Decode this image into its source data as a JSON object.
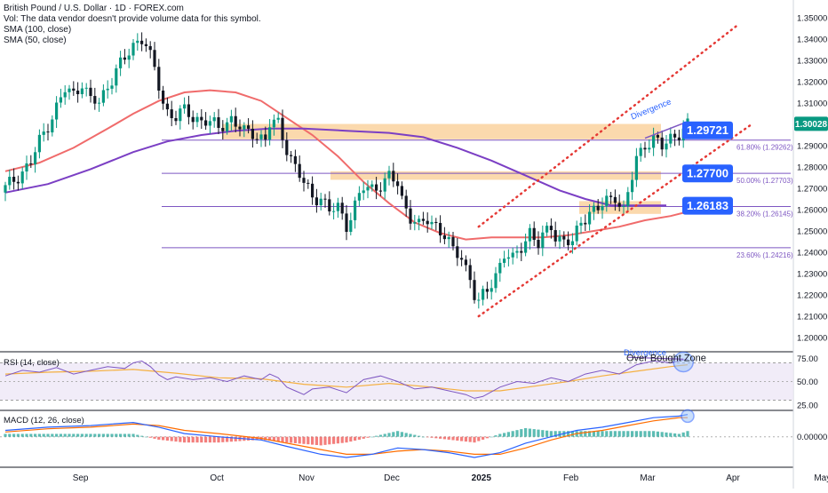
{
  "legend": {
    "title": "British Pound / U.S. Dollar · 1D · FOREX.com",
    "vol_note": "Vol: The data vendor doesn't provide volume data for this symbol.",
    "sma100": "SMA (100, close)",
    "sma50": "SMA (50, close)"
  },
  "rsi_label": "RSI (14, close)",
  "macd_label": "MACD (12, 26, close)",
  "colors": {
    "up": "#089981",
    "down": "#131722",
    "sma50": "#f06b6b",
    "sma100": "#7b3fc4",
    "fib": "#7e57c2",
    "zone": "#f9c98a",
    "badge": "#2962ff",
    "trend": "#e53935",
    "rsi": "#7e57c2",
    "rsi_ma": "#f5b041",
    "macd": "#2962ff",
    "signal": "#ff6d00",
    "hist_up": "#26a69a",
    "hist_down": "#ef5350"
  },
  "chart_data": {
    "type": "candlestick",
    "symbol": "British Pound / U.S. Dollar",
    "timeframe": "1D",
    "y_axis": {
      "range": [
        1.195,
        1.355
      ],
      "ticks": [
        "1.35000",
        "1.34000",
        "1.33000",
        "1.32000",
        "1.31000",
        "1.30000",
        "1.29000",
        "1.28000",
        "1.27000",
        "1.26000",
        "1.25000",
        "1.24000",
        "1.23000",
        "1.22000",
        "1.21000",
        "1.20000"
      ]
    },
    "x_axis": {
      "labels": [
        "Sep",
        "Oct",
        "Nov",
        "Dec",
        "2025",
        "Feb",
        "Mar",
        "Apr",
        "May"
      ]
    },
    "close_path": [
      [
        0,
        1.27
      ],
      [
        3,
        1.276
      ],
      [
        6,
        1.282
      ],
      [
        8,
        1.292
      ],
      [
        10,
        1.3
      ],
      [
        12,
        1.308
      ],
      [
        14,
        1.316
      ],
      [
        16,
        1.314
      ],
      [
        18,
        1.32
      ],
      [
        20,
        1.311
      ],
      [
        22,
        1.31
      ],
      [
        24,
        1.318
      ],
      [
        26,
        1.326
      ],
      [
        28,
        1.33
      ],
      [
        30,
        1.337
      ],
      [
        32,
        1.341
      ],
      [
        33,
        1.338
      ],
      [
        35,
        1.325
      ],
      [
        37,
        1.31
      ],
      [
        38,
        1.306
      ],
      [
        40,
        1.304
      ],
      [
        42,
        1.306
      ],
      [
        44,
        1.303
      ],
      [
        47,
        1.302
      ],
      [
        50,
        1.298
      ],
      [
        53,
        1.303
      ],
      [
        56,
        1.296
      ],
      [
        58,
        1.296
      ],
      [
        61,
        1.293
      ],
      [
        62,
        1.3
      ],
      [
        64,
        1.3
      ],
      [
        66,
        1.289
      ],
      [
        68,
        1.28
      ],
      [
        70,
        1.272
      ],
      [
        72,
        1.266
      ],
      [
        74,
        1.266
      ],
      [
        76,
        1.259
      ],
      [
        78,
        1.261
      ],
      [
        80,
        1.253
      ],
      [
        82,
        1.262
      ],
      [
        84,
        1.27
      ],
      [
        86,
        1.27
      ],
      [
        88,
        1.272
      ],
      [
        90,
        1.275
      ],
      [
        92,
        1.272
      ],
      [
        93,
        1.265
      ],
      [
        95,
        1.257
      ],
      [
        97,
        1.252
      ],
      [
        99,
        1.255
      ],
      [
        101,
        1.253
      ],
      [
        103,
        1.248
      ],
      [
        105,
        1.24
      ],
      [
        107,
        1.238
      ],
      [
        109,
        1.228
      ],
      [
        110,
        1.22
      ],
      [
        111,
        1.216
      ],
      [
        113,
        1.222
      ],
      [
        115,
        1.23
      ],
      [
        117,
        1.239
      ],
      [
        119,
        1.236
      ],
      [
        121,
        1.243
      ],
      [
        123,
        1.25
      ],
      [
        125,
        1.243
      ],
      [
        127,
        1.25
      ],
      [
        128,
        1.253
      ],
      [
        129,
        1.248
      ],
      [
        131,
        1.245
      ],
      [
        133,
        1.244
      ],
      [
        135,
        1.255
      ],
      [
        137,
        1.259
      ],
      [
        139,
        1.26
      ],
      [
        141,
        1.264
      ],
      [
        143,
        1.267
      ],
      [
        145,
        1.259
      ],
      [
        147,
        1.275
      ],
      [
        148,
        1.284
      ],
      [
        150,
        1.291
      ],
      [
        152,
        1.293
      ],
      [
        154,
        1.289
      ],
      [
        156,
        1.294
      ],
      [
        158,
        1.296
      ],
      [
        160,
        1.299
      ]
    ],
    "sma50": [
      [
        0,
        1.278
      ],
      [
        8,
        1.282
      ],
      [
        16,
        1.289
      ],
      [
        24,
        1.298
      ],
      [
        30,
        1.305
      ],
      [
        36,
        1.311
      ],
      [
        42,
        1.315
      ],
      [
        48,
        1.316
      ],
      [
        54,
        1.315
      ],
      [
        60,
        1.311
      ],
      [
        66,
        1.303
      ],
      [
        72,
        1.295
      ],
      [
        78,
        1.285
      ],
      [
        84,
        1.273
      ],
      [
        90,
        1.263
      ],
      [
        96,
        1.254
      ],
      [
        102,
        1.249
      ],
      [
        108,
        1.246
      ],
      [
        114,
        1.247
      ],
      [
        120,
        1.247
      ],
      [
        126,
        1.247
      ],
      [
        132,
        1.248
      ],
      [
        138,
        1.25
      ],
      [
        144,
        1.252
      ],
      [
        150,
        1.255
      ],
      [
        156,
        1.257
      ],
      [
        160,
        1.259
      ]
    ],
    "sma100": [
      [
        0,
        1.268
      ],
      [
        10,
        1.272
      ],
      [
        20,
        1.279
      ],
      [
        30,
        1.287
      ],
      [
        38,
        1.292
      ],
      [
        46,
        1.295
      ],
      [
        54,
        1.297
      ],
      [
        62,
        1.298
      ],
      [
        70,
        1.298
      ],
      [
        80,
        1.297
      ],
      [
        90,
        1.296
      ],
      [
        98,
        1.294
      ],
      [
        106,
        1.289
      ],
      [
        114,
        1.283
      ],
      [
        122,
        1.276
      ],
      [
        130,
        1.269
      ],
      [
        136,
        1.265
      ],
      [
        142,
        1.262
      ],
      [
        148,
        1.262
      ],
      [
        155,
        1.262
      ]
    ],
    "fib_levels": [
      {
        "label": "61.80% (1.29262)",
        "value": 1.29262
      },
      {
        "label": "50.00% (1.27703)",
        "value": 1.27703
      },
      {
        "label": "38.20% (1.26145)",
        "value": 1.26145
      },
      {
        "label": "23.60% (1.24216)",
        "value": 1.24216
      }
    ],
    "zones": [
      {
        "top": 1.3002,
        "bottom": 1.293
      },
      {
        "top": 1.278,
        "bottom": 1.274
      },
      {
        "top": 1.264,
        "bottom": 1.258
      }
    ],
    "key_levels": [
      "1.29721",
      "1.27700",
      "1.26183"
    ],
    "last_price": "1.30028",
    "trend_channel": {
      "upper": [
        [
          111,
          1.252
        ],
        [
          172,
          1.347
        ]
      ],
      "lower": [
        [
          111,
          1.21
        ],
        [
          175,
          1.3
        ]
      ]
    },
    "annotations": {
      "divergence": "Divergence",
      "rsi_divergence": "Divergence",
      "overbought": "Over Bought Zone"
    },
    "rsi": {
      "ticks": [
        "75.00",
        "50.00",
        "25.00"
      ],
      "range": [
        20,
        80
      ],
      "band": [
        30,
        70
      ],
      "values": [
        [
          0,
          56
        ],
        [
          4,
          62
        ],
        [
          8,
          60
        ],
        [
          12,
          65
        ],
        [
          16,
          58
        ],
        [
          20,
          62
        ],
        [
          24,
          66
        ],
        [
          28,
          64
        ],
        [
          30,
          70
        ],
        [
          32,
          72
        ],
        [
          34,
          66
        ],
        [
          36,
          57
        ],
        [
          38,
          52
        ],
        [
          40,
          55
        ],
        [
          44,
          52
        ],
        [
          48,
          54
        ],
        [
          52,
          50
        ],
        [
          56,
          56
        ],
        [
          60,
          52
        ],
        [
          62,
          58
        ],
        [
          64,
          54
        ],
        [
          66,
          44
        ],
        [
          68,
          40
        ],
        [
          70,
          36
        ],
        [
          72,
          42
        ],
        [
          76,
          44
        ],
        [
          80,
          38
        ],
        [
          84,
          52
        ],
        [
          88,
          56
        ],
        [
          92,
          50
        ],
        [
          96,
          42
        ],
        [
          100,
          44
        ],
        [
          104,
          40
        ],
        [
          108,
          36
        ],
        [
          110,
          32
        ],
        [
          112,
          34
        ],
        [
          116,
          44
        ],
        [
          120,
          50
        ],
        [
          124,
          48
        ],
        [
          128,
          54
        ],
        [
          132,
          50
        ],
        [
          136,
          58
        ],
        [
          140,
          62
        ],
        [
          144,
          58
        ],
        [
          148,
          68
        ],
        [
          152,
          72
        ],
        [
          156,
          70
        ],
        [
          160,
          74
        ]
      ],
      "ma": [
        [
          0,
          58
        ],
        [
          10,
          60
        ],
        [
          20,
          61
        ],
        [
          30,
          63
        ],
        [
          40,
          59
        ],
        [
          50,
          54
        ],
        [
          60,
          53
        ],
        [
          70,
          47
        ],
        [
          80,
          44
        ],
        [
          90,
          48
        ],
        [
          100,
          44
        ],
        [
          108,
          40
        ],
        [
          116,
          40
        ],
        [
          124,
          45
        ],
        [
          132,
          50
        ],
        [
          140,
          56
        ],
        [
          148,
          61
        ],
        [
          156,
          66
        ],
        [
          160,
          68
        ]
      ]
    },
    "macd": {
      "tick": "0.00000",
      "range": [
        -0.018,
        0.016
      ],
      "macd": [
        [
          0,
          0.004
        ],
        [
          10,
          0.006
        ],
        [
          20,
          0.007
        ],
        [
          30,
          0.009
        ],
        [
          36,
          0.006
        ],
        [
          42,
          0.002
        ],
        [
          50,
          0.0
        ],
        [
          60,
          -0.002
        ],
        [
          66,
          -0.006
        ],
        [
          74,
          -0.011
        ],
        [
          80,
          -0.013
        ],
        [
          86,
          -0.011
        ],
        [
          92,
          -0.007
        ],
        [
          98,
          -0.008
        ],
        [
          104,
          -0.01
        ],
        [
          110,
          -0.013
        ],
        [
          116,
          -0.01
        ],
        [
          122,
          -0.004
        ],
        [
          128,
          0.0
        ],
        [
          134,
          0.004
        ],
        [
          140,
          0.006
        ],
        [
          146,
          0.009
        ],
        [
          152,
          0.012
        ],
        [
          158,
          0.013
        ],
        [
          160,
          0.014
        ]
      ],
      "signal": [
        [
          0,
          0.003
        ],
        [
          10,
          0.005
        ],
        [
          20,
          0.006
        ],
        [
          30,
          0.008
        ],
        [
          36,
          0.007
        ],
        [
          42,
          0.004
        ],
        [
          50,
          0.002
        ],
        [
          60,
          -0.001
        ],
        [
          66,
          -0.004
        ],
        [
          74,
          -0.008
        ],
        [
          80,
          -0.011
        ],
        [
          86,
          -0.011
        ],
        [
          92,
          -0.009
        ],
        [
          98,
          -0.008
        ],
        [
          104,
          -0.009
        ],
        [
          110,
          -0.011
        ],
        [
          116,
          -0.011
        ],
        [
          122,
          -0.007
        ],
        [
          128,
          -0.002
        ],
        [
          134,
          0.002
        ],
        [
          140,
          0.004
        ],
        [
          146,
          0.007
        ],
        [
          152,
          0.01
        ],
        [
          158,
          0.012
        ],
        [
          160,
          0.012
        ]
      ]
    }
  }
}
